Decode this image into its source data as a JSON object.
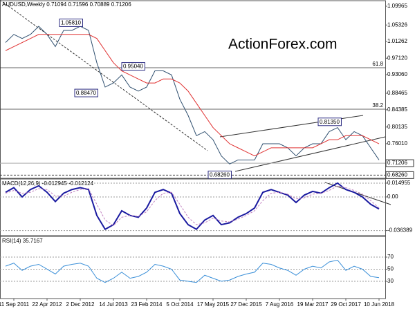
{
  "chart_data": [
    {
      "type": "line",
      "title": "AUDUSD,Weekly  0.71094 0.71596 0.70889 0.71206",
      "watermark": "ActionForex.com",
      "categories": [
        null,
        "11 Sep 2011",
        null,
        null,
        null,
        "22 Apr 2012",
        null,
        null,
        null,
        "2 Dec 2012",
        null,
        null,
        null,
        "14 Jul 2013",
        null,
        null,
        null,
        "23 Feb 2014",
        null,
        null,
        null,
        "5 Oct 2014",
        null,
        null,
        null,
        "17 May 2015",
        null,
        null,
        null,
        "27 Dec 2015",
        null,
        null,
        null,
        "7 Aug 2016",
        null,
        null,
        null,
        "19 Mar 2017",
        null,
        null,
        null,
        "29 Oct 2017",
        null,
        null,
        null,
        "10 Jun 2018"
      ],
      "series": [
        {
          "color": "#2f4f6f",
          "values": [
            1.01,
            1.03,
            1.02,
            1.03,
            1.05,
            1.03,
            1.0,
            1.04,
            1.04,
            1.05,
            1.04,
            0.96,
            0.9,
            0.91,
            0.93,
            0.9,
            0.89,
            0.9,
            0.94,
            0.94,
            0.93,
            0.87,
            0.83,
            0.78,
            0.79,
            0.77,
            0.73,
            0.71,
            0.72,
            0.72,
            0.72,
            0.76,
            0.76,
            0.76,
            0.75,
            0.73,
            0.75,
            0.76,
            0.76,
            0.79,
            0.8,
            0.77,
            0.79,
            0.78,
            0.75,
            0.72
          ]
        },
        {
          "color": "#e03030",
          "values": [
            0.99,
            1.0,
            1.01,
            1.02,
            1.03,
            1.03,
            1.03,
            1.03,
            1.03,
            1.03,
            1.03,
            1.02,
            0.99,
            0.96,
            0.94,
            0.93,
            0.92,
            0.91,
            0.91,
            0.92,
            0.92,
            0.91,
            0.89,
            0.86,
            0.83,
            0.8,
            0.78,
            0.76,
            0.75,
            0.74,
            0.73,
            0.74,
            0.75,
            0.75,
            0.75,
            0.75,
            0.75,
            0.75,
            0.76,
            0.77,
            0.77,
            0.78,
            0.78,
            0.78,
            0.77,
            0.76
          ]
        }
      ],
      "ylim": [
        0.6747,
        1.1133
      ],
      "yticks": [
        1.09965,
        1.05326,
        1.01262,
        {
          "value": 0.9712,
          "label": "0.97120"
        },
        {
          "value": 0.9306,
          "label": "0.93060"
        },
        0.88465,
        0.84385,
        0.80135,
        {
          "value": 0.7601,
          "label": "0.76010"
        }
      ],
      "levels": [
        {
          "value": 0.9478,
          "label": "61.8"
        },
        {
          "value": 0.8454,
          "label": "38.2"
        }
      ],
      "current_price": 0.71206,
      "support": {
        "value": 0.6826,
        "label": "0.68260"
      },
      "annotations": [
        {
          "value": 1.0581,
          "label": "1.05810"
        },
        {
          "value": 0.9504,
          "label": "0.95040"
        },
        {
          "value": 0.8847,
          "label": "0.88470"
        },
        {
          "value": 0.8135,
          "label": "0.81350"
        },
        {
          "value": 0.6826,
          "label": "0.68260"
        }
      ]
    },
    {
      "type": "line",
      "title": "MACD(12,26,9) -0.012945 -0.012124",
      "series": [
        {
          "color": "#1a1aa0",
          "values": [
            0.005,
            0.01,
            0.0,
            0.008,
            0.012,
            0.005,
            -0.005,
            0.004,
            0.008,
            0.01,
            0.008,
            -0.02,
            -0.035,
            -0.03,
            -0.015,
            -0.02,
            -0.022,
            -0.012,
            0.005,
            0.008,
            0.004,
            -0.018,
            -0.03,
            -0.035,
            -0.025,
            -0.02,
            -0.03,
            -0.028,
            -0.022,
            -0.018,
            -0.012,
            0.005,
            0.008,
            0.005,
            0.002,
            -0.006,
            0.002,
            0.006,
            0.004,
            0.01,
            0.015,
            0.008,
            0.005,
            0.0,
            -0.008,
            -0.013
          ]
        },
        {
          "color": "#c080c0",
          "values": [
            0.004,
            0.007,
            0.004,
            0.005,
            0.009,
            0.008,
            0.001,
            0.001,
            0.005,
            0.008,
            0.009,
            -0.008,
            -0.025,
            -0.031,
            -0.022,
            -0.02,
            -0.021,
            -0.016,
            -0.004,
            0.004,
            0.005,
            -0.008,
            -0.022,
            -0.03,
            -0.028,
            -0.023,
            -0.026,
            -0.027,
            -0.024,
            -0.02,
            -0.015,
            -0.004,
            0.004,
            0.005,
            0.003,
            -0.002,
            -0.001,
            0.003,
            0.004,
            0.007,
            0.012,
            0.01,
            0.007,
            0.003,
            -0.004,
            -0.012
          ]
        }
      ],
      "ylim": [
        -0.0419,
        0.0194
      ],
      "yticks": [
        0.014955,
        {
          "value": 0,
          "label": "0.00"
        },
        -0.036389
      ]
    },
    {
      "type": "line",
      "title": "RSI(14) 35.7167",
      "series": [
        {
          "color": "#3a8fd8",
          "values": [
            55,
            60,
            48,
            55,
            58,
            50,
            42,
            55,
            58,
            60,
            55,
            35,
            28,
            35,
            45,
            35,
            38,
            45,
            58,
            55,
            50,
            32,
            30,
            28,
            40,
            35,
            30,
            32,
            38,
            42,
            45,
            60,
            58,
            52,
            48,
            40,
            50,
            55,
            52,
            62,
            65,
            48,
            55,
            50,
            38,
            36
          ]
        }
      ],
      "ylim": [
        1.4,
        104.3
      ],
      "yticks": [
        70,
        50,
        30
      ]
    }
  ]
}
